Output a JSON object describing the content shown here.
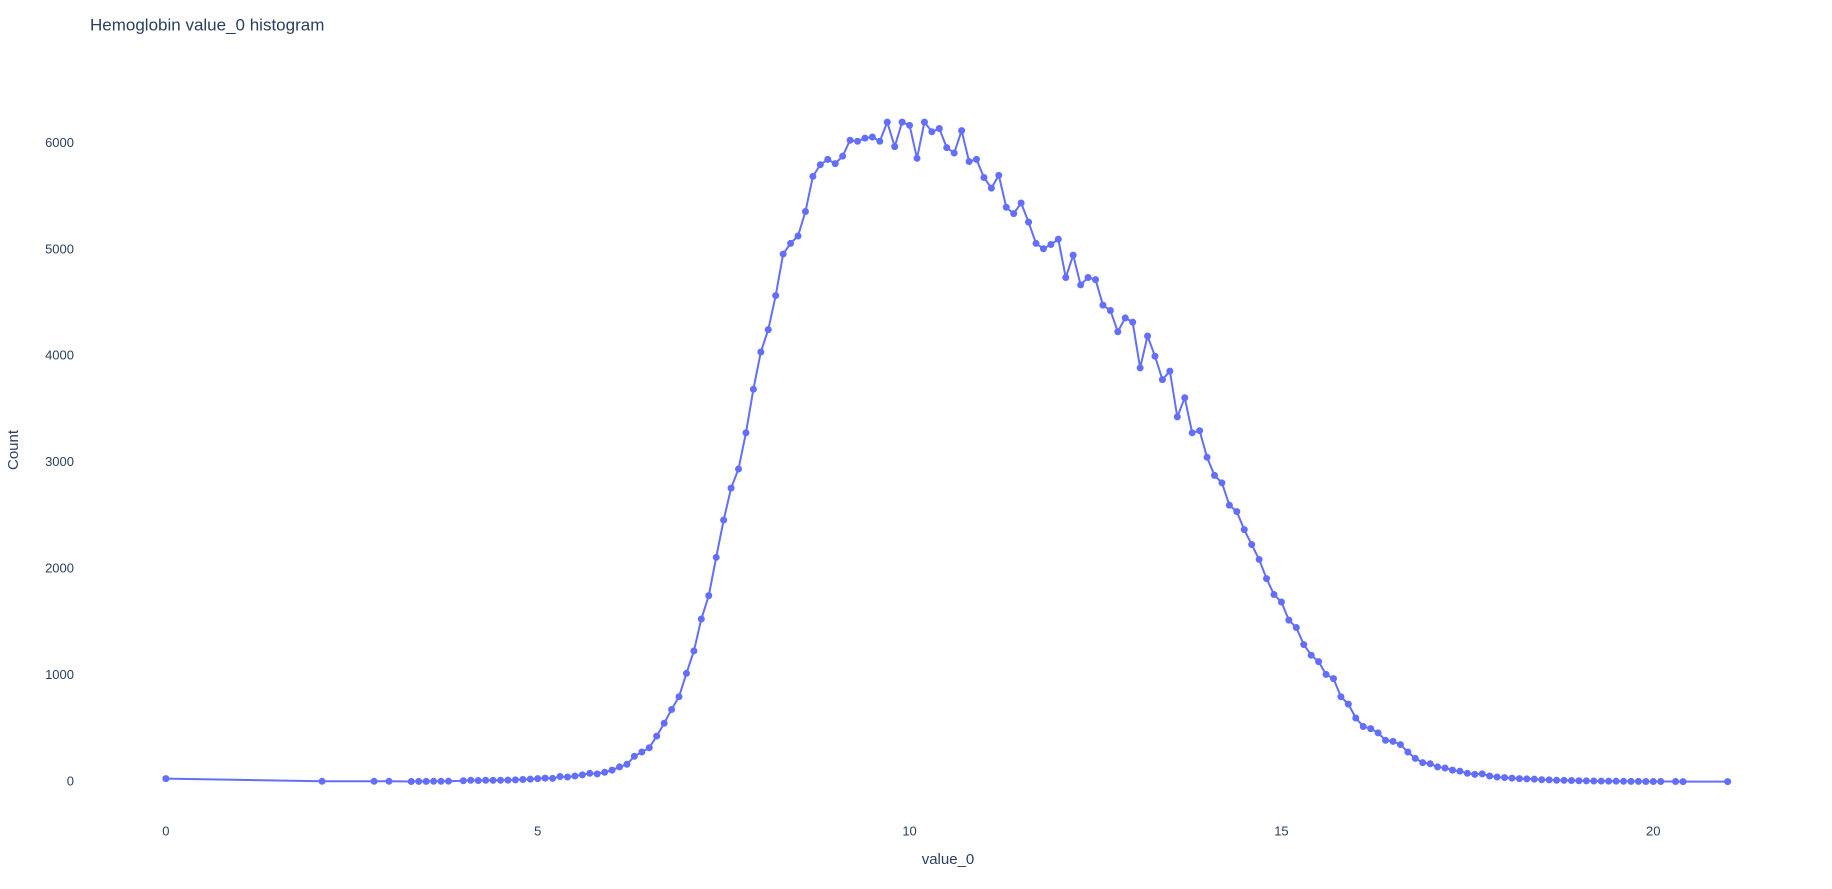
{
  "chart_data": {
    "type": "line",
    "title": "Hemoglobin value_0 histogram",
    "x_label": "value_0",
    "y_label": "Count",
    "color": "#636efa",
    "markers": true,
    "grid": false,
    "xlim": [
      -1.02,
      22.04
    ],
    "ylim": [
      -340,
      6690
    ],
    "xticks": [
      0,
      5,
      10,
      15,
      20
    ],
    "yticks": [
      0,
      1000,
      2000,
      3000,
      4000,
      5000,
      6000
    ],
    "x": [
      0,
      2.1,
      2.8,
      3.0,
      3.3,
      3.4,
      3.5,
      3.6,
      3.7,
      3.8,
      4.0,
      4.1,
      4.2,
      4.3,
      4.4,
      4.5,
      4.6,
      4.7,
      4.8,
      4.9,
      5.0,
      5.1,
      5.2,
      5.3,
      5.4,
      5.5,
      5.6,
      5.7,
      5.8,
      5.9,
      6.0,
      6.1,
      6.2,
      6.3,
      6.4,
      6.5,
      6.6,
      6.7,
      6.8,
      6.9,
      7.0,
      7.1,
      7.2,
      7.3,
      7.4,
      7.5,
      7.6,
      7.7,
      7.8,
      7.9,
      8.0,
      8.1,
      8.2,
      8.3,
      8.4,
      8.5,
      8.6,
      8.7,
      8.8,
      8.9,
      9.0,
      9.1,
      9.2,
      9.3,
      9.4,
      9.5,
      9.6,
      9.7,
      9.8,
      9.9,
      10.0,
      10.1,
      10.2,
      10.3,
      10.4,
      10.5,
      10.6,
      10.7,
      10.8,
      10.9,
      11.0,
      11.1,
      11.2,
      11.3,
      11.4,
      11.5,
      11.6,
      11.7,
      11.8,
      11.9,
      12.0,
      12.1,
      12.2,
      12.3,
      12.4,
      12.5,
      12.6,
      12.7,
      12.8,
      12.9,
      13.0,
      13.1,
      13.2,
      13.3,
      13.4,
      13.5,
      13.6,
      13.7,
      13.8,
      13.9,
      14.0,
      14.1,
      14.2,
      14.3,
      14.4,
      14.5,
      14.6,
      14.7,
      14.8,
      14.9,
      15.0,
      15.1,
      15.2,
      15.3,
      15.4,
      15.5,
      15.6,
      15.7,
      15.8,
      15.9,
      16.0,
      16.1,
      16.2,
      16.3,
      16.4,
      16.5,
      16.6,
      16.7,
      16.8,
      16.9,
      17.0,
      17.1,
      17.2,
      17.3,
      17.4,
      17.5,
      17.6,
      17.7,
      17.8,
      17.9,
      18.0,
      18.1,
      18.2,
      18.3,
      18.4,
      18.5,
      18.6,
      18.7,
      18.8,
      18.9,
      19.0,
      19.1,
      19.2,
      19.3,
      19.4,
      19.5,
      19.6,
      19.7,
      19.8,
      19.9,
      20.0,
      20.1,
      20.3,
      20.4,
      21.0
    ],
    "values": [
      30,
      5,
      5,
      5,
      3,
      4,
      4,
      5,
      5,
      6,
      10,
      15,
      12,
      15,
      14,
      15,
      16,
      18,
      22,
      25,
      30,
      35,
      32,
      50,
      45,
      55,
      65,
      80,
      75,
      90,
      110,
      140,
      165,
      240,
      280,
      320,
      430,
      550,
      680,
      800,
      1020,
      1230,
      1530,
      1750,
      2110,
      2460,
      2760,
      2940,
      3280,
      3690,
      4040,
      4250,
      4570,
      4960,
      5060,
      5130,
      5360,
      5690,
      5800,
      5850,
      5810,
      5880,
      6030,
      6020,
      6050,
      6060,
      6020,
      6200,
      5970,
      6200,
      6170,
      5860,
      6200,
      6110,
      6140,
      5960,
      5910,
      6120,
      5830,
      5850,
      5680,
      5580,
      5700,
      5400,
      5340,
      5440,
      5260,
      5060,
      5010,
      5050,
      5100,
      4740,
      4950,
      4670,
      4740,
      4720,
      4480,
      4430,
      4230,
      4360,
      4320,
      3890,
      4190,
      4000,
      3780,
      3860,
      3430,
      3610,
      3280,
      3300,
      3050,
      2880,
      2810,
      2600,
      2540,
      2370,
      2230,
      2090,
      1910,
      1760,
      1690,
      1520,
      1450,
      1290,
      1190,
      1130,
      1010,
      970,
      800,
      730,
      600,
      520,
      500,
      460,
      390,
      380,
      350,
      280,
      220,
      180,
      170,
      140,
      130,
      110,
      100,
      80,
      70,
      75,
      55,
      45,
      40,
      35,
      30,
      28,
      25,
      20,
      18,
      15,
      14,
      12,
      10,
      9,
      8,
      7,
      6,
      6,
      5,
      4,
      4,
      3,
      3,
      3,
      3,
      2,
      2
    ]
  }
}
